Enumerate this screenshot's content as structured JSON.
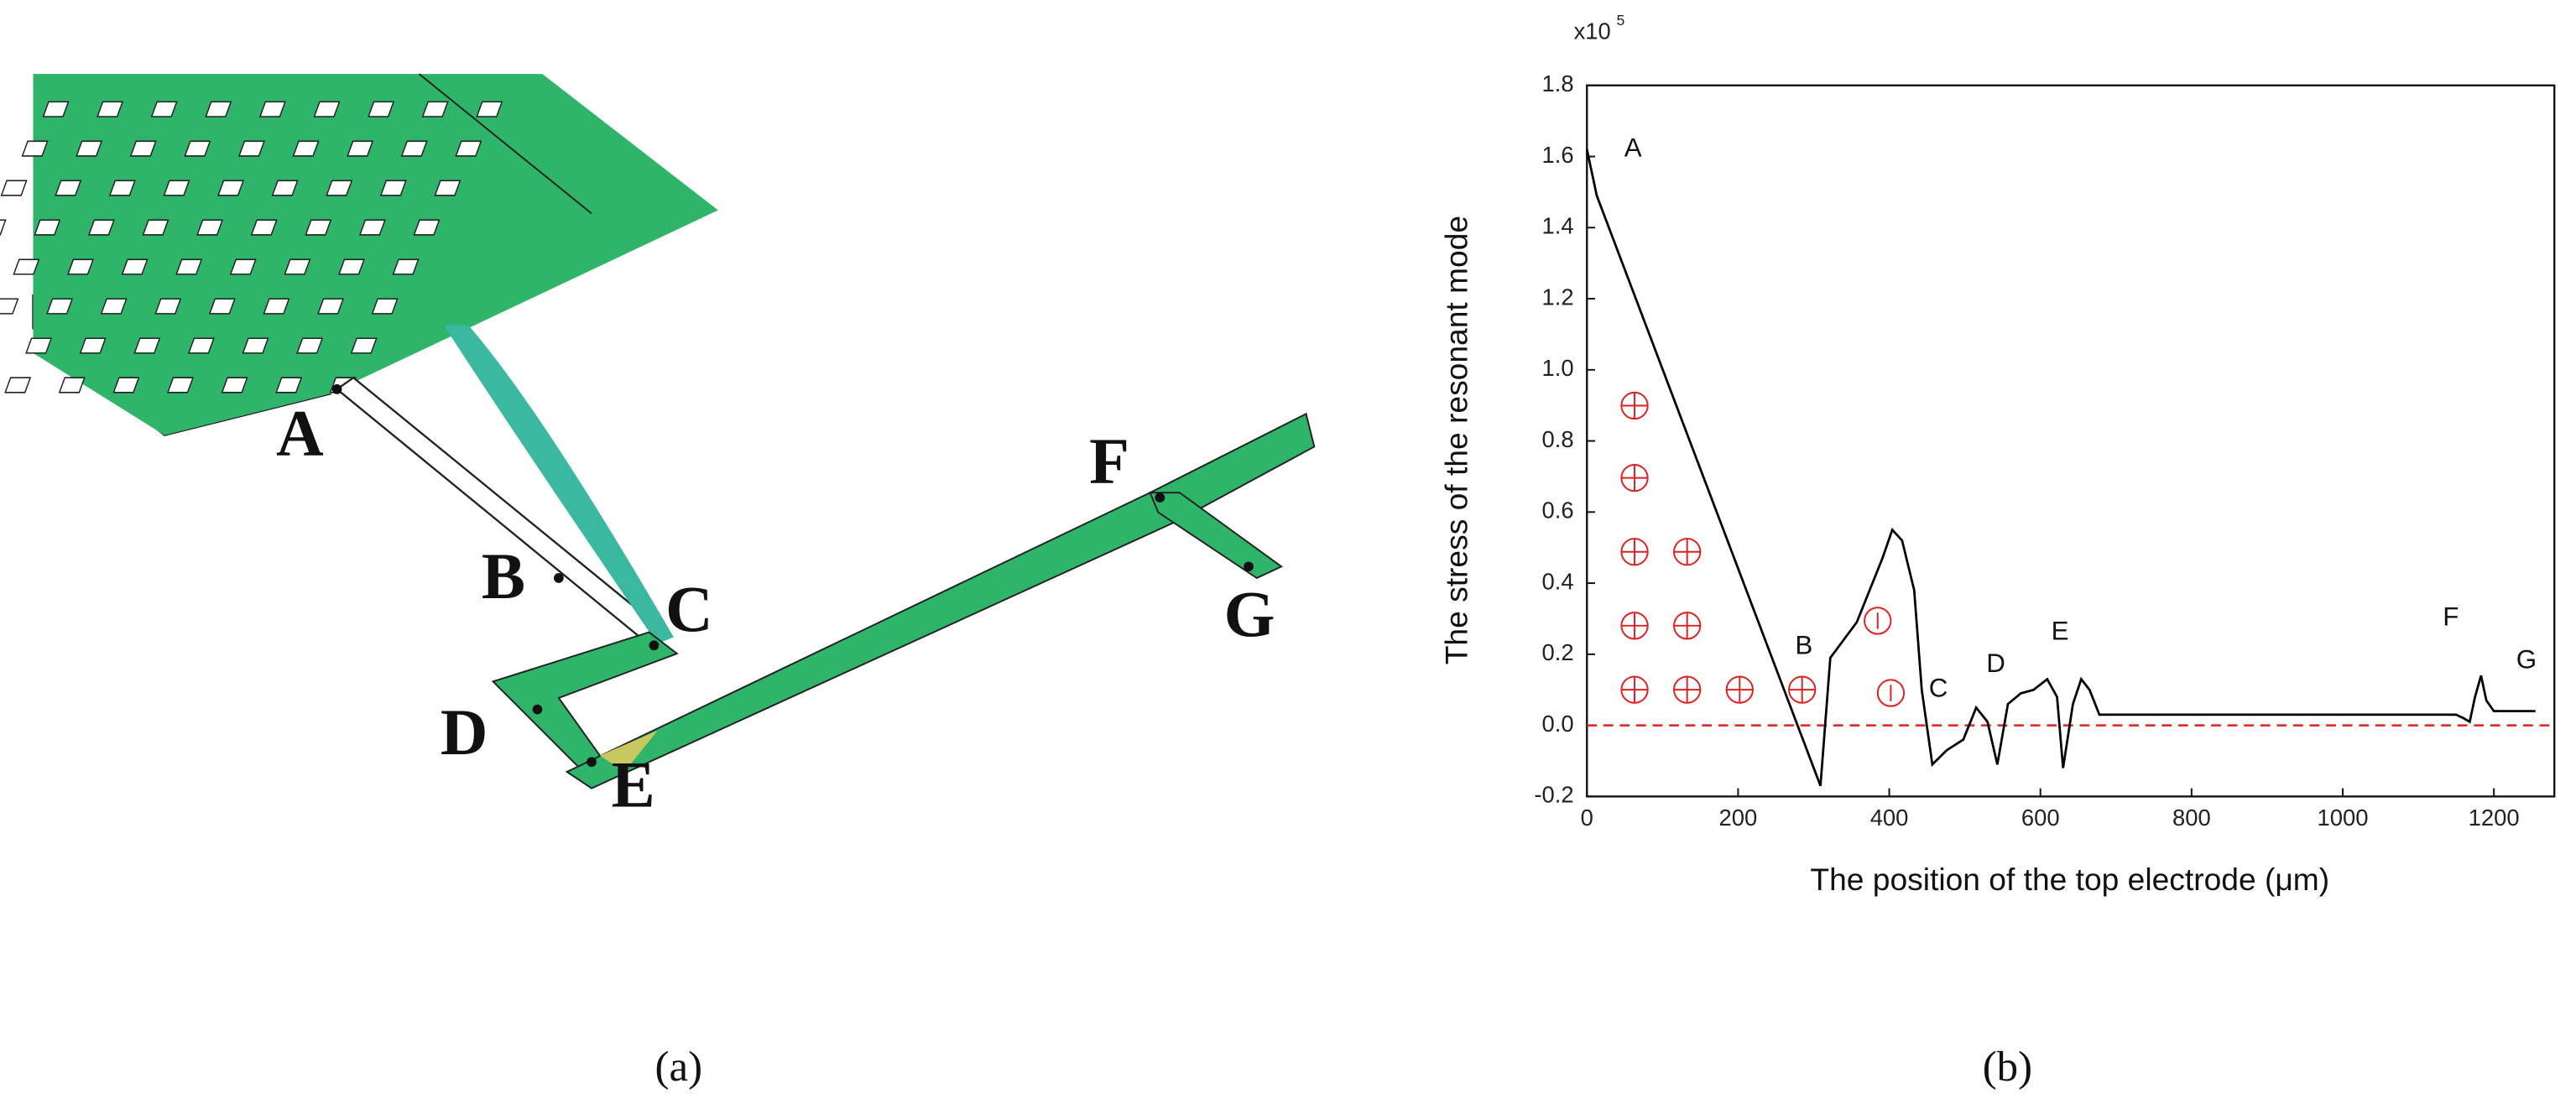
{
  "figure_a": {
    "caption": "(a)",
    "labels": [
      "A",
      "B",
      "C",
      "D",
      "E",
      "F",
      "G"
    ]
  },
  "chart_data": {
    "type": "line",
    "caption": "(b)",
    "y_multiplier": "x10",
    "y_exponent": "5",
    "ylabel": "The stress of the resonant mode",
    "xlabel": "The position of the top electrode (μm)",
    "x": [
      0,
      13,
      309,
      322,
      357,
      391,
      404,
      417,
      433,
      443,
      457,
      476,
      498,
      515,
      530,
      543,
      557,
      574,
      591,
      609,
      622,
      630,
      643,
      654,
      665,
      678,
      1150,
      1160,
      1168,
      1175,
      1183,
      1190,
      1200,
      1255
    ],
    "series": [
      {
        "name": "stress",
        "color": "#000000",
        "values": [
          1.62,
          1.49,
          -0.17,
          0.19,
          0.29,
          0.47,
          0.55,
          0.52,
          0.38,
          0.1,
          -0.11,
          -0.07,
          -0.04,
          0.05,
          0.01,
          -0.11,
          0.06,
          0.09,
          0.1,
          0.13,
          0.08,
          -0.12,
          0.06,
          0.13,
          0.1,
          0.03,
          0.03,
          0.02,
          0.01,
          0.08,
          0.14,
          0.07,
          0.04,
          0.04
        ]
      }
    ],
    "reference_line": {
      "value": 0,
      "color": "#e02020"
    },
    "annotations": [
      {
        "text": "A",
        "x": 61,
        "y": 1.62
      },
      {
        "text": "B",
        "x": 287,
        "y": 0.22
      },
      {
        "text": "C",
        "x": 465,
        "y": 0.1
      },
      {
        "text": "D",
        "x": 541,
        "y": 0.17
      },
      {
        "text": "E",
        "x": 626,
        "y": 0.26
      },
      {
        "text": "F",
        "x": 1143,
        "y": 0.3
      },
      {
        "text": "G",
        "x": 1243,
        "y": 0.18
      }
    ],
    "xlim": [
      0,
      1280
    ],
    "ylim": [
      -0.2,
      1.8
    ],
    "xticks": [
      0,
      200,
      400,
      600,
      800,
      1000,
      1200
    ],
    "yticks": [
      -0.2,
      {
        "value": 0,
        "label": "0.0"
      },
      0.2,
      0.4,
      0.6,
      0.8,
      {
        "value": 1,
        "label": "1.0"
      },
      1.2,
      1.4,
      1.6,
      1.8
    ]
  }
}
